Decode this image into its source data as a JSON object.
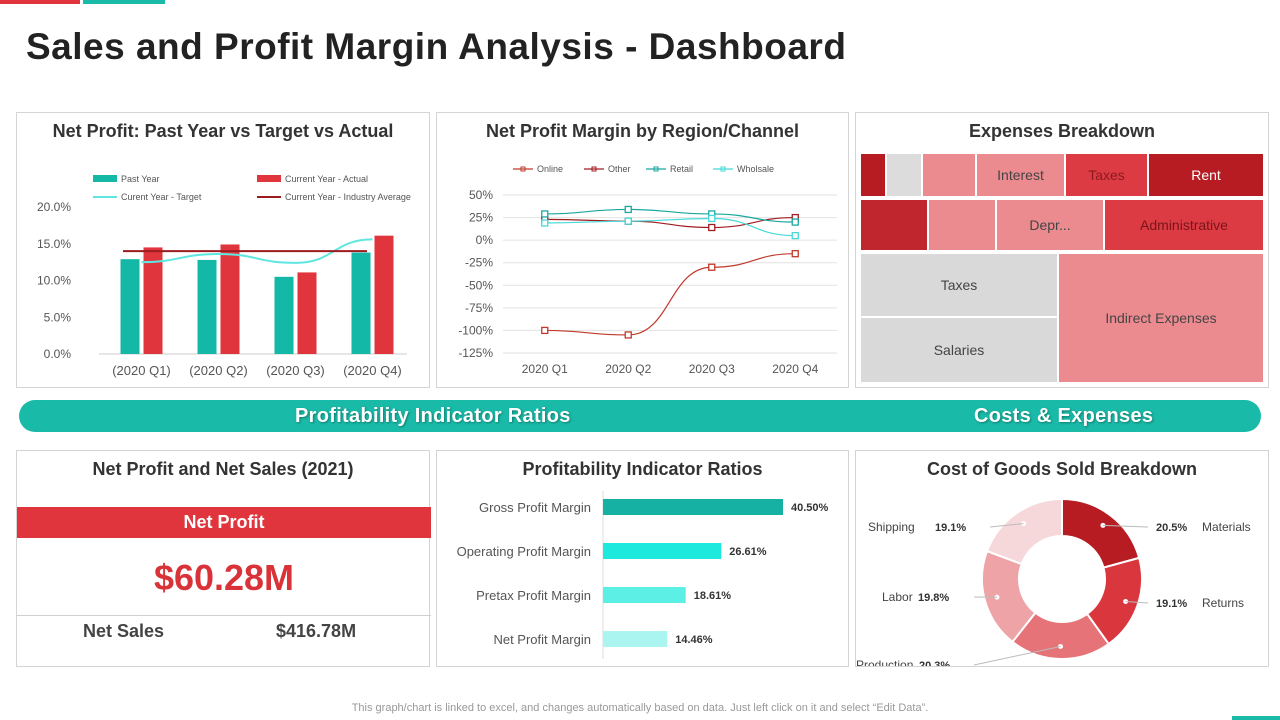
{
  "page": {
    "title": "Sales and Profit Margin Analysis - Dashboard",
    "banner_left": "Profitability Indicator Ratios",
    "banner_right": "Costs & Expenses",
    "footnote": "This graph/chart is linked to excel, and changes automatically based on data. Just left click on it and select “Edit Data”.",
    "colors": {
      "teal": "#1abaa8",
      "red": "#e0353d",
      "darkred": "#b71c23",
      "accent_bar": "#1abaa8"
    }
  },
  "net_sales_card": {
    "title": "Net Profit and Net Sales (2021)",
    "net_profit_label": "Net Profit",
    "net_profit_value": "$60.28M",
    "net_sales_label": "Net Sales",
    "net_sales_value": "$416.78M"
  },
  "expenses": {
    "title": "Expenses Breakdown",
    "labels": [
      "Interest",
      "Taxes",
      "Rent",
      "Depr...",
      "Administrative",
      "Taxes",
      "Indirect Expenses",
      "Salaries"
    ]
  },
  "chart_data": [
    {
      "id": "net_profit",
      "type": "bar",
      "title": "Net Profit: Past Year vs Target vs Actual",
      "categories": [
        "(2020 Q1)",
        "(2020 Q2)",
        "(2020 Q3)",
        "(2020 Q4)"
      ],
      "ylim": [
        0,
        20
      ],
      "yticks": [
        "0.0%",
        "5.0%",
        "10.0%",
        "15.0%",
        "20.0%"
      ],
      "series": [
        {
          "name": "Past Year",
          "kind": "bar",
          "color": "#14b8a6",
          "values": [
            12.9,
            12.8,
            10.5,
            13.8
          ]
        },
        {
          "name": "Current Year - Actual",
          "kind": "bar",
          "color": "#e0353d",
          "values": [
            14.5,
            14.9,
            11.1,
            16.1
          ]
        },
        {
          "name": "Curent Year - Target",
          "kind": "line",
          "color": "#5ee6e0",
          "values": [
            12.5,
            13.6,
            12.4,
            15.6
          ]
        },
        {
          "name": "Current Year - Industry Average",
          "kind": "line",
          "color": "#9c1b1f",
          "values": [
            14.0,
            14.0,
            14.0,
            14.0
          ]
        }
      ]
    },
    {
      "id": "margin_region",
      "type": "line",
      "title": "Net Profit Margin by Region/Channel",
      "categories": [
        "2020 Q1",
        "2020 Q2",
        "2020 Q3",
        "2020 Q4"
      ],
      "ylim": [
        -125,
        50
      ],
      "yticks": [
        "-125%",
        "-100%",
        "-75%",
        "-50%",
        "-25%",
        "0%",
        "25%",
        "50%"
      ],
      "series": [
        {
          "name": "Online",
          "color": "#c0392b",
          "values": [
            -100,
            -105,
            -30,
            -15
          ]
        },
        {
          "name": "Other",
          "color": "#a01d22",
          "values": [
            23,
            21,
            14,
            25
          ]
        },
        {
          "name": "Retail",
          "color": "#1aa7a0",
          "values": [
            29,
            34,
            29,
            20
          ]
        },
        {
          "name": "Wholsale",
          "color": "#46d9d9",
          "values": [
            19,
            21,
            24,
            5
          ]
        }
      ]
    },
    {
      "id": "ratios",
      "type": "bar",
      "title": "Profitability Indicator Ratios",
      "categories": [
        "Gross Profit Margin",
        "Operating Profit Margin",
        "Pretax Profit Margin",
        "Net Profit Margin"
      ],
      "values": [
        40.5,
        26.61,
        18.61,
        14.46
      ],
      "labels": [
        "40.50%",
        "26.61%",
        "18.61%",
        "14.46%"
      ],
      "colors": [
        "#17b1a4",
        "#1de9dc",
        "#5cefe6",
        "#aaf5f0"
      ]
    },
    {
      "id": "cogs",
      "type": "pie",
      "title": "Cost of Goods Sold Breakdown",
      "slices": [
        {
          "name": "Materials",
          "value": 20.5,
          "label": "20.5%",
          "color": "#b71c23"
        },
        {
          "name": "Returns",
          "value": 19.1,
          "label": "19.1%",
          "color": "#d9363e"
        },
        {
          "name": "Production",
          "value": 20.3,
          "label": "20.3%",
          "color": "#e57378"
        },
        {
          "name": "Labor",
          "value": 19.8,
          "label": "19.8%",
          "color": "#eea3a7"
        },
        {
          "name": "Shipping",
          "value": 19.1,
          "label": "19.1%",
          "color": "#f7d8da"
        }
      ]
    }
  ]
}
